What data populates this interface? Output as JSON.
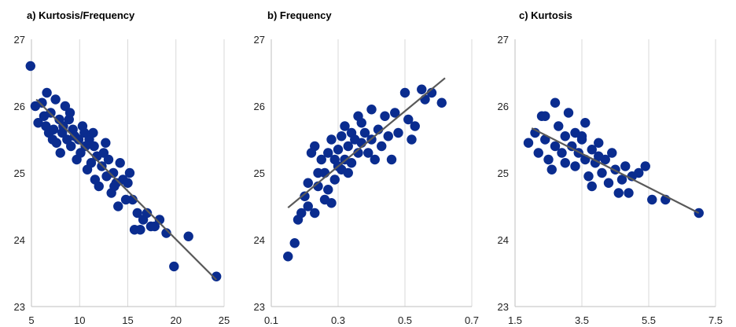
{
  "colors": {
    "points": "#0a2c8f",
    "trend": "#595959",
    "grid": "#d9d9d9"
  },
  "chart_data": [
    {
      "type": "scatter",
      "title": "a) Kurtosis/Frequency",
      "xlim": [
        5,
        25
      ],
      "ylim": [
        23,
        27
      ],
      "xticks": [
        "5",
        "10",
        "15",
        "20",
        "25"
      ],
      "yticks": [
        "23",
        "24",
        "25",
        "26",
        "27"
      ],
      "grid": "vertical",
      "trendline": [
        [
          5.5,
          26.1
        ],
        [
          24.2,
          23.4
        ]
      ],
      "points": [
        [
          4.9,
          26.6
        ],
        [
          5.4,
          26.0
        ],
        [
          5.7,
          25.75
        ],
        [
          6.1,
          26.05
        ],
        [
          6.3,
          25.85
        ],
        [
          6.6,
          26.2
        ],
        [
          6.8,
          25.6
        ],
        [
          7.0,
          25.9
        ],
        [
          7.3,
          25.65
        ],
        [
          7.5,
          26.1
        ],
        [
          7.6,
          25.45
        ],
        [
          7.9,
          25.8
        ],
        [
          8.0,
          25.3
        ],
        [
          8.3,
          25.7
        ],
        [
          8.5,
          26.0
        ],
        [
          8.7,
          25.5
        ],
        [
          8.9,
          25.8
        ],
        [
          9.1,
          25.4
        ],
        [
          9.3,
          25.65
        ],
        [
          9.5,
          25.55
        ],
        [
          9.7,
          25.2
        ],
        [
          9.9,
          25.5
        ],
        [
          10.1,
          25.3
        ],
        [
          10.3,
          25.7
        ],
        [
          10.6,
          25.4
        ],
        [
          10.8,
          25.05
        ],
        [
          11.0,
          25.5
        ],
        [
          11.2,
          25.15
        ],
        [
          11.4,
          25.6
        ],
        [
          11.6,
          24.9
        ],
        [
          11.8,
          25.25
        ],
        [
          12.0,
          24.8
        ],
        [
          12.3,
          25.1
        ],
        [
          12.5,
          25.3
        ],
        [
          12.8,
          24.95
        ],
        [
          13.0,
          25.2
        ],
        [
          13.3,
          24.7
        ],
        [
          13.5,
          25.0
        ],
        [
          13.8,
          24.85
        ],
        [
          14.0,
          24.5
        ],
        [
          14.2,
          25.15
        ],
        [
          14.5,
          24.9
        ],
        [
          14.8,
          24.6
        ],
        [
          15.0,
          24.85
        ],
        [
          15.2,
          25.0
        ],
        [
          15.5,
          24.6
        ],
        [
          15.7,
          24.15
        ],
        [
          16.0,
          24.4
        ],
        [
          16.3,
          24.15
        ],
        [
          16.6,
          24.3
        ],
        [
          17.0,
          24.4
        ],
        [
          17.4,
          24.2
        ],
        [
          17.8,
          24.2
        ],
        [
          18.3,
          24.3
        ],
        [
          19.0,
          24.1
        ],
        [
          19.8,
          23.6
        ],
        [
          21.3,
          24.05
        ],
        [
          24.2,
          23.45
        ],
        [
          6.5,
          25.7
        ],
        [
          7.2,
          25.5
        ],
        [
          8.2,
          25.6
        ],
        [
          9.0,
          25.9
        ],
        [
          10.5,
          25.6
        ],
        [
          11.5,
          25.4
        ],
        [
          12.7,
          25.45
        ],
        [
          13.6,
          24.8
        ]
      ]
    },
    {
      "type": "scatter",
      "title": "b) Frequency",
      "xlim": [
        0.1,
        0.7
      ],
      "ylim": [
        23,
        27
      ],
      "xticks": [
        "0.1",
        "0.3",
        "0.5",
        "0.7"
      ],
      "yticks": [
        "23",
        "24",
        "25",
        "26",
        "27"
      ],
      "grid": "vertical",
      "trendline": [
        [
          0.15,
          24.48
        ],
        [
          0.62,
          26.42
        ]
      ],
      "points": [
        [
          0.15,
          23.75
        ],
        [
          0.17,
          23.95
        ],
        [
          0.18,
          24.3
        ],
        [
          0.19,
          24.4
        ],
        [
          0.2,
          24.65
        ],
        [
          0.21,
          24.5
        ],
        [
          0.21,
          24.85
        ],
        [
          0.22,
          25.3
        ],
        [
          0.23,
          24.4
        ],
        [
          0.23,
          25.4
        ],
        [
          0.24,
          25.0
        ],
        [
          0.24,
          24.8
        ],
        [
          0.25,
          25.2
        ],
        [
          0.26,
          24.6
        ],
        [
          0.26,
          25.0
        ],
        [
          0.27,
          24.75
        ],
        [
          0.27,
          25.3
        ],
        [
          0.28,
          24.55
        ],
        [
          0.28,
          25.5
        ],
        [
          0.29,
          24.9
        ],
        [
          0.29,
          25.2
        ],
        [
          0.3,
          25.35
        ],
        [
          0.3,
          25.1
        ],
        [
          0.31,
          25.55
        ],
        [
          0.31,
          25.05
        ],
        [
          0.32,
          25.7
        ],
        [
          0.32,
          25.2
        ],
        [
          0.33,
          25.4
        ],
        [
          0.34,
          25.6
        ],
        [
          0.34,
          25.15
        ],
        [
          0.35,
          25.5
        ],
        [
          0.36,
          25.3
        ],
        [
          0.37,
          25.75
        ],
        [
          0.37,
          25.45
        ],
        [
          0.38,
          25.6
        ],
        [
          0.39,
          25.3
        ],
        [
          0.4,
          25.95
        ],
        [
          0.4,
          25.5
        ],
        [
          0.41,
          25.2
        ],
        [
          0.42,
          25.65
        ],
        [
          0.43,
          25.4
        ],
        [
          0.44,
          25.85
        ],
        [
          0.45,
          25.55
        ],
        [
          0.46,
          25.2
        ],
        [
          0.47,
          25.9
        ],
        [
          0.48,
          25.6
        ],
        [
          0.5,
          26.2
        ],
        [
          0.51,
          25.8
        ],
        [
          0.52,
          25.5
        ],
        [
          0.53,
          25.7
        ],
        [
          0.55,
          26.25
        ],
        [
          0.56,
          26.1
        ],
        [
          0.58,
          26.2
        ],
        [
          0.61,
          26.05
        ],
        [
          0.36,
          25.85
        ],
        [
          0.33,
          25.0
        ]
      ]
    },
    {
      "type": "scatter",
      "title": "c) Kurtosis",
      "xlim": [
        1.5,
        7.5
      ],
      "ylim": [
        23,
        27
      ],
      "xticks": [
        "1.5",
        "3.5",
        "5.5",
        "7.5"
      ],
      "yticks": [
        "23",
        "24",
        "25",
        "26",
        "27"
      ],
      "grid": "vertical",
      "trendline": [
        [
          2.0,
          25.67
        ],
        [
          7.0,
          24.4
        ]
      ],
      "points": [
        [
          1.9,
          25.45
        ],
        [
          2.1,
          25.6
        ],
        [
          2.2,
          25.3
        ],
        [
          2.3,
          25.85
        ],
        [
          2.4,
          25.5
        ],
        [
          2.5,
          25.2
        ],
        [
          2.6,
          25.05
        ],
        [
          2.7,
          26.05
        ],
        [
          2.7,
          25.4
        ],
        [
          2.8,
          25.7
        ],
        [
          2.9,
          25.3
        ],
        [
          3.0,
          25.55
        ],
        [
          3.0,
          25.15
        ],
        [
          3.1,
          25.9
        ],
        [
          3.2,
          25.4
        ],
        [
          3.3,
          25.6
        ],
        [
          3.3,
          25.1
        ],
        [
          3.4,
          25.3
        ],
        [
          3.5,
          25.5
        ],
        [
          3.6,
          25.2
        ],
        [
          3.6,
          25.75
        ],
        [
          3.7,
          24.95
        ],
        [
          3.8,
          25.35
        ],
        [
          3.9,
          25.15
        ],
        [
          4.0,
          25.45
        ],
        [
          4.1,
          25.0
        ],
        [
          4.2,
          25.2
        ],
        [
          4.3,
          24.85
        ],
        [
          4.4,
          25.3
        ],
        [
          4.5,
          25.05
        ],
        [
          4.6,
          24.7
        ],
        [
          4.7,
          24.9
        ],
        [
          4.8,
          25.1
        ],
        [
          4.9,
          24.7
        ],
        [
          5.0,
          24.95
        ],
        [
          5.2,
          25.0
        ],
        [
          5.4,
          25.1
        ],
        [
          5.6,
          24.6
        ],
        [
          6.0,
          24.6
        ],
        [
          7.0,
          24.4
        ],
        [
          2.4,
          25.85
        ],
        [
          3.5,
          25.55
        ],
        [
          4.0,
          25.25
        ],
        [
          3.8,
          24.8
        ]
      ]
    }
  ]
}
